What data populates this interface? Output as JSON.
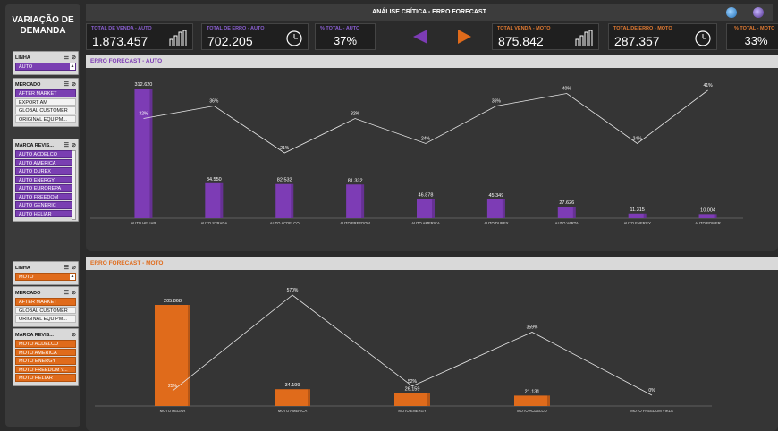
{
  "sidebar": {
    "title": "VARIAÇÃO DE\nDEMANDA",
    "auto": {
      "linha": {
        "header": "LINHA",
        "items": [
          "AUTO"
        ]
      },
      "mercado": {
        "header": "MERCADO",
        "items": [
          "AFTER MARKET",
          "EXPORT AM",
          "GLOBAL CUSTOMER",
          "ORIGINAL EQUIPM..."
        ]
      },
      "marca": {
        "header": "MARCA REVIS...",
        "items": [
          "AUTO ACDELCO",
          "AUTO AMERICA",
          "AUTO DUREX",
          "AUTO ENERGY",
          "AUTO EUROREPA",
          "AUTO FREEDOM",
          "AUTO GENERIC",
          "AUTO HELIAR"
        ]
      }
    },
    "moto": {
      "linha": {
        "header": "LINHA",
        "items": [
          "MOTO"
        ]
      },
      "mercado": {
        "header": "MERCADO",
        "items": [
          "AFTER MARKET",
          "GLOBAL CUSTOMER",
          "ORIGINAL EQUIPM..."
        ]
      },
      "marca": {
        "header": "MARCA REVIS...",
        "items": [
          "MOTO ACDELCO",
          "MOTO AMERICA",
          "MOTO ENERGY",
          "MOTO FREEDOM V...",
          "MOTO HELIAR"
        ]
      }
    }
  },
  "header": {
    "title": "ANÁLISE CRÍTICA - ERRO FORECAST"
  },
  "kpis": {
    "venda_auto": {
      "label": "TOTAL DE VENDA - AUTO",
      "value": "1.873.457"
    },
    "erro_auto": {
      "label": "TOTAL DE ERRO - AUTO",
      "value": "702.205"
    },
    "pct_auto": {
      "label": "% TOTAL - AUTO",
      "value": "37%"
    },
    "venda_moto": {
      "label": "TOTAL VENDA - MOTO",
      "value": "875.842"
    },
    "erro_moto": {
      "label": "TOTAL DE ERRO - MOTO",
      "value": "287.357"
    },
    "pct_moto": {
      "label": "% TOTAL - MOTO",
      "value": "33%"
    }
  },
  "colors": {
    "purple": "#7d3cb5",
    "orange": "#e06b1b",
    "label_purple": "#8a5fd1",
    "label_orange": "#e07a32"
  },
  "chart_data": [
    {
      "type": "bar",
      "title": "ERRO FORECAST - AUTO",
      "categories": [
        "AUTO HELIAR",
        "AUTO STRADA",
        "AUTO ACDELCO",
        "AUTO FREEDOM",
        "AUTO AMERICA",
        "AUTO DUREX",
        "AUTO VARTA",
        "AUTO ENERGY",
        "AUTO POWER"
      ],
      "series": [
        {
          "values": [
            312620,
            84550,
            82532,
            81332,
            46878,
            45349,
            27626,
            11315,
            10004
          ]
        },
        {
          "type": "line",
          "values": [
            32,
            36,
            21,
            32,
            24,
            36,
            40,
            24,
            41
          ]
        }
      ],
      "bar_labels": [
        "312.620",
        "84.550",
        "82.532",
        "81.332",
        "46.878",
        "45.349",
        "27.626",
        "11.315",
        "10.004"
      ],
      "line_labels": [
        "32%",
        "36%",
        "21%",
        "32%",
        "24%",
        "36%",
        "40%",
        "24%",
        "41%"
      ]
    },
    {
      "type": "bar",
      "title": "ERRO FORECAST - MOTO",
      "categories": [
        "MOTO HELIAR",
        "MOTO AMERICA",
        "MOTO ENERGY",
        "MOTO ACDELCO",
        "MOTO FREEDOM VIKLA"
      ],
      "series": [
        {
          "values": [
            205868,
            34199,
            26159,
            21131,
            0
          ]
        },
        {
          "type": "line",
          "values": [
            25,
            570,
            52,
            359,
            0
          ]
        }
      ],
      "bar_labels": [
        "205.868",
        "34.199",
        "26.159",
        "21.131",
        ""
      ],
      "line_labels": [
        "25%",
        "570%",
        "52%",
        "359%",
        "0%"
      ]
    }
  ]
}
